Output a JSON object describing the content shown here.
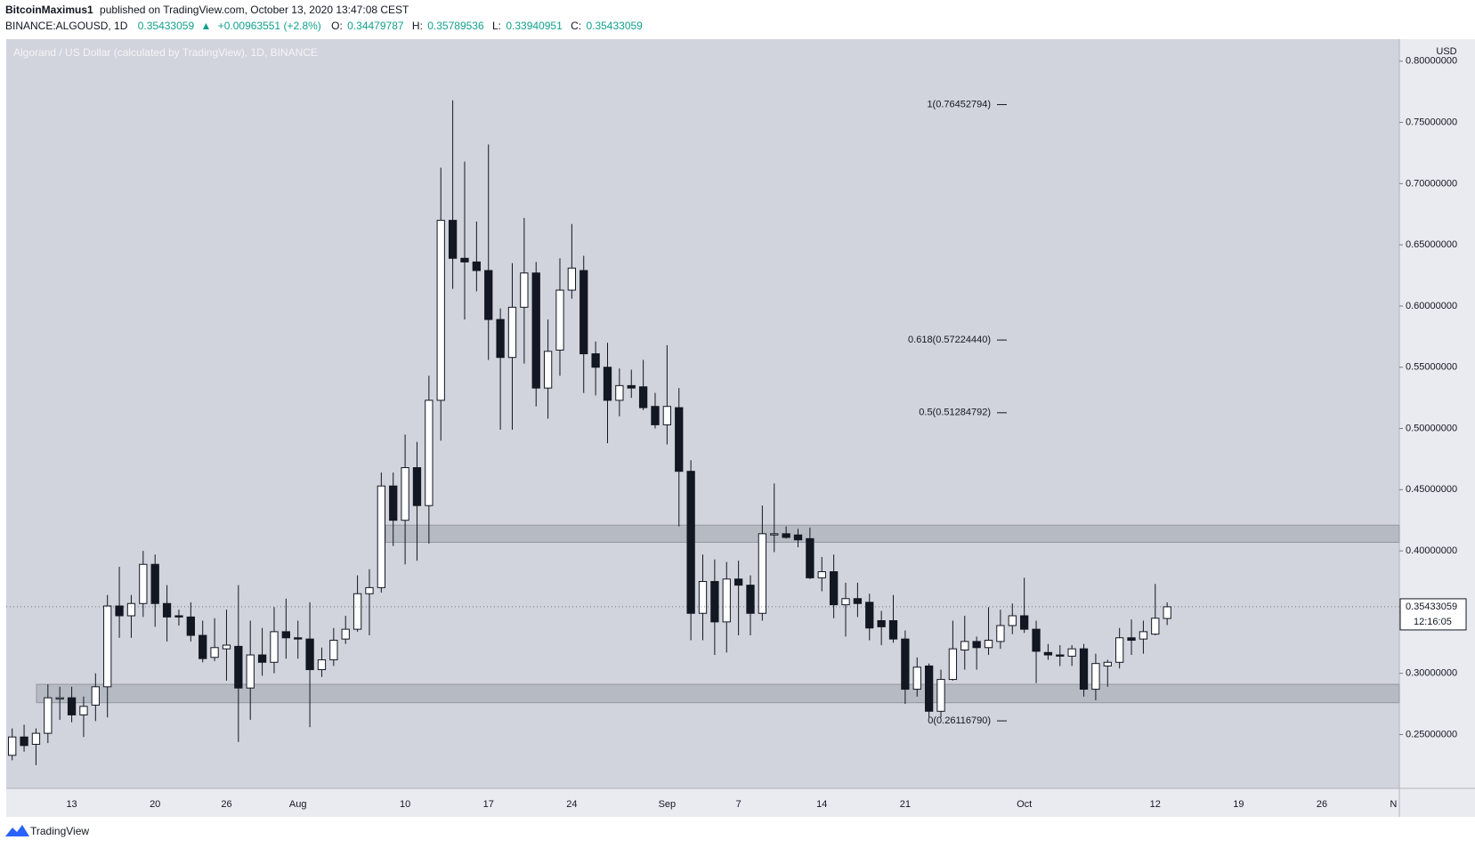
{
  "header": {
    "author": "BitcoinMaximus1",
    "published": "published on TradingView.com, October 13, 2020 13:47:08 CEST",
    "symbol": "BINANCE:ALGOUSD, 1D",
    "change": "+0.00963551 (+2.8%)",
    "ohlc_labels": [
      "O:",
      "H:",
      "L:",
      "C:"
    ]
  },
  "footer": {
    "brand": "TradingView"
  },
  "chart_data": {
    "type": "candlestick",
    "title": "Algorand / US Dollar (calculated by TradingView), 1D, BINANCE",
    "y_axis_unit": "USD",
    "countdown": "12:16:05",
    "up_color": "#ffffff",
    "down_color": "#131722",
    "categories": [
      null,
      null,
      null,
      null,
      null,
      "13",
      null,
      null,
      null,
      null,
      null,
      null,
      "20",
      null,
      null,
      null,
      null,
      null,
      "26",
      null,
      null,
      null,
      null,
      null,
      "Aug",
      null,
      null,
      null,
      null,
      null,
      null,
      null,
      null,
      "10",
      null,
      null,
      null,
      null,
      null,
      null,
      "17",
      null,
      null,
      null,
      null,
      null,
      null,
      "24",
      null,
      null,
      null,
      null,
      null,
      null,
      null,
      "Sep",
      null,
      null,
      null,
      null,
      null,
      "7",
      null,
      null,
      null,
      null,
      null,
      null,
      "14",
      null,
      null,
      null,
      null,
      null,
      null,
      "21",
      null,
      null,
      null,
      null,
      null,
      null,
      null,
      null,
      null,
      "Oct",
      null,
      null,
      null,
      null,
      null,
      null,
      null,
      null,
      null,
      null,
      "12",
      null,
      null,
      null,
      null,
      null,
      null,
      "19",
      null,
      null,
      null,
      null,
      null,
      null,
      "26",
      null,
      null,
      null,
      null,
      null,
      "N"
    ],
    "open": [
      0.233,
      0.248,
      0.242,
      0.251,
      0.279,
      0.28,
      0.266,
      0.274,
      0.289,
      0.355,
      0.347,
      0.357,
      0.389,
      0.357,
      0.347,
      0.346,
      0.331,
      0.313,
      0.32,
      0.322,
      0.288,
      0.315,
      0.309,
      0.334,
      0.329,
      0.328,
      0.303,
      0.311,
      0.328,
      0.336,
      0.365,
      0.37,
      0.453,
      0.425,
      0.468,
      0.437,
      0.523,
      0.67,
      0.639,
      0.636,
      0.629,
      0.589,
      0.558,
      0.599,
      0.627,
      0.533,
      0.564,
      0.613,
      0.629,
      0.561,
      0.55,
      0.523,
      0.535,
      0.534,
      0.518,
      0.503,
      0.517,
      0.465,
      0.349,
      0.375,
      0.342,
      0.377,
      0.372,
      0.349,
      0.413,
      0.414,
      0.413,
      0.41,
      0.378,
      0.383,
      0.356,
      0.361,
      0.358,
      0.343,
      0.343,
      0.328,
      0.287,
      0.306,
      0.269,
      0.295,
      0.319,
      0.326,
      0.321,
      0.326,
      0.339,
      0.347,
      0.336,
      0.317,
      0.315,
      0.314,
      0.32,
      0.287,
      0.306,
      0.309,
      0.329,
      0.328,
      0.332,
      0.34479787,
      null,
      null,
      null,
      null,
      null,
      null,
      null,
      null,
      null,
      null,
      null,
      null,
      null,
      null,
      null,
      null,
      null,
      null,
      null
    ],
    "high": [
      0.255,
      0.258,
      0.255,
      0.291,
      0.289,
      0.289,
      0.281,
      0.3,
      0.364,
      0.387,
      0.364,
      0.4,
      0.397,
      0.372,
      0.352,
      0.358,
      0.343,
      0.345,
      0.352,
      0.372,
      0.343,
      0.337,
      0.354,
      0.361,
      0.343,
      0.358,
      0.321,
      0.337,
      0.347,
      0.38,
      0.385,
      0.464,
      0.464,
      0.495,
      0.489,
      0.543,
      0.713,
      0.768,
      0.718,
      0.669,
      0.732,
      0.598,
      0.635,
      0.672,
      0.636,
      0.589,
      0.639,
      0.667,
      0.641,
      0.571,
      0.57,
      0.549,
      0.548,
      0.556,
      0.529,
      0.568,
      0.533,
      0.474,
      0.397,
      0.393,
      0.391,
      0.392,
      0.38,
      0.437,
      0.455,
      0.42,
      0.418,
      0.419,
      0.395,
      0.397,
      0.374,
      0.374,
      0.365,
      0.351,
      0.364,
      0.335,
      0.313,
      0.308,
      0.303,
      0.343,
      0.347,
      0.33,
      0.354,
      0.352,
      0.357,
      0.378,
      0.343,
      0.324,
      0.323,
      0.323,
      0.324,
      0.316,
      0.311,
      0.337,
      0.344,
      0.343,
      0.373,
      0.35789536,
      null,
      null,
      null,
      null,
      null,
      null,
      null,
      null,
      null,
      null,
      null,
      null,
      null,
      null,
      null,
      null,
      null,
      null,
      null
    ],
    "low": [
      0.229,
      0.236,
      0.225,
      0.243,
      0.262,
      0.26,
      0.248,
      0.261,
      0.264,
      0.329,
      0.329,
      0.346,
      0.338,
      0.326,
      0.339,
      0.326,
      0.309,
      0.31,
      0.294,
      0.244,
      0.262,
      0.298,
      0.3,
      0.312,
      0.312,
      0.256,
      0.297,
      0.306,
      0.324,
      0.334,
      0.331,
      0.366,
      0.404,
      0.389,
      0.392,
      0.406,
      0.49,
      0.614,
      0.589,
      0.612,
      0.556,
      0.499,
      0.499,
      0.553,
      0.518,
      0.508,
      0.543,
      0.606,
      0.529,
      0.527,
      0.488,
      0.51,
      0.525,
      0.515,
      0.5,
      0.487,
      0.42,
      0.327,
      0.327,
      0.315,
      0.317,
      0.331,
      0.331,
      0.343,
      0.399,
      0.41,
      0.403,
      0.377,
      0.367,
      0.345,
      0.33,
      0.346,
      0.327,
      0.323,
      0.325,
      0.275,
      0.281,
      0.264,
      0.264,
      0.294,
      0.303,
      0.303,
      0.315,
      0.32,
      0.332,
      0.333,
      0.292,
      0.311,
      0.306,
      0.306,
      0.281,
      0.278,
      0.289,
      0.304,
      0.315,
      0.316,
      0.331,
      0.33940951,
      null,
      null,
      null,
      null,
      null,
      null,
      null,
      null,
      null,
      null,
      null,
      null,
      null,
      null,
      null,
      null,
      null,
      null,
      null
    ],
    "close": [
      0.248,
      0.241,
      0.251,
      0.28,
      0.28,
      0.266,
      0.273,
      0.289,
      0.355,
      0.347,
      0.357,
      0.389,
      0.357,
      0.346,
      0.346,
      0.331,
      0.312,
      0.321,
      0.323,
      0.288,
      0.315,
      0.309,
      0.334,
      0.329,
      0.328,
      0.303,
      0.311,
      0.327,
      0.336,
      0.365,
      0.37,
      0.453,
      0.425,
      0.468,
      0.437,
      0.523,
      0.67,
      0.639,
      0.636,
      0.629,
      0.589,
      0.558,
      0.599,
      0.627,
      0.533,
      0.563,
      0.613,
      0.631,
      0.561,
      0.55,
      0.523,
      0.535,
      0.533,
      0.517,
      0.503,
      0.518,
      0.465,
      0.349,
      0.375,
      0.342,
      0.377,
      0.372,
      0.349,
      0.414,
      0.414,
      0.411,
      0.409,
      0.378,
      0.383,
      0.356,
      0.361,
      0.357,
      0.337,
      0.338,
      0.328,
      0.287,
      0.305,
      0.269,
      0.295,
      0.32,
      0.326,
      0.321,
      0.327,
      0.339,
      0.347,
      0.336,
      0.318,
      0.315,
      0.314,
      0.32,
      0.287,
      0.308,
      0.309,
      0.329,
      0.327,
      0.334,
      0.345,
      0.35433059,
      null,
      null,
      null,
      null,
      null,
      null,
      null,
      null,
      null,
      null,
      null,
      null,
      null,
      null,
      null,
      null,
      null,
      null,
      null
    ],
    "ylim": [
      0.206,
      0.818
    ],
    "yticks": [
      {
        "value": 0.25,
        "label": "0.25000000"
      },
      {
        "value": 0.3,
        "label": "0.30000000"
      },
      {
        "value": 0.35,
        "label": "0.35000000"
      },
      {
        "value": 0.4,
        "label": "0.40000000"
      },
      {
        "value": 0.45,
        "label": "0.45000000"
      },
      {
        "value": 0.5,
        "label": "0.50000000"
      },
      {
        "value": 0.55,
        "label": "0.55000000"
      },
      {
        "value": 0.6,
        "label": "0.60000000"
      },
      {
        "value": 0.65,
        "label": "0.65000000"
      },
      {
        "value": 0.7,
        "label": "0.70000000"
      },
      {
        "value": 0.75,
        "label": "0.75000000"
      },
      {
        "value": 0.8,
        "label": "0.80000000"
      }
    ],
    "fib_levels": [
      {
        "value": 0.76452794,
        "label": "1(0.76452794)"
      },
      {
        "value": 0.5722444,
        "label": "0.618(0.57224440)"
      },
      {
        "value": 0.51284792,
        "label": "0.5(0.51284792)"
      },
      {
        "value": 0.2611679,
        "label": "0(0.26116790)"
      }
    ],
    "zones": [
      {
        "low": 0.407,
        "high": 0.421
      },
      {
        "low": 0.276,
        "high": 0.291
      }
    ]
  }
}
